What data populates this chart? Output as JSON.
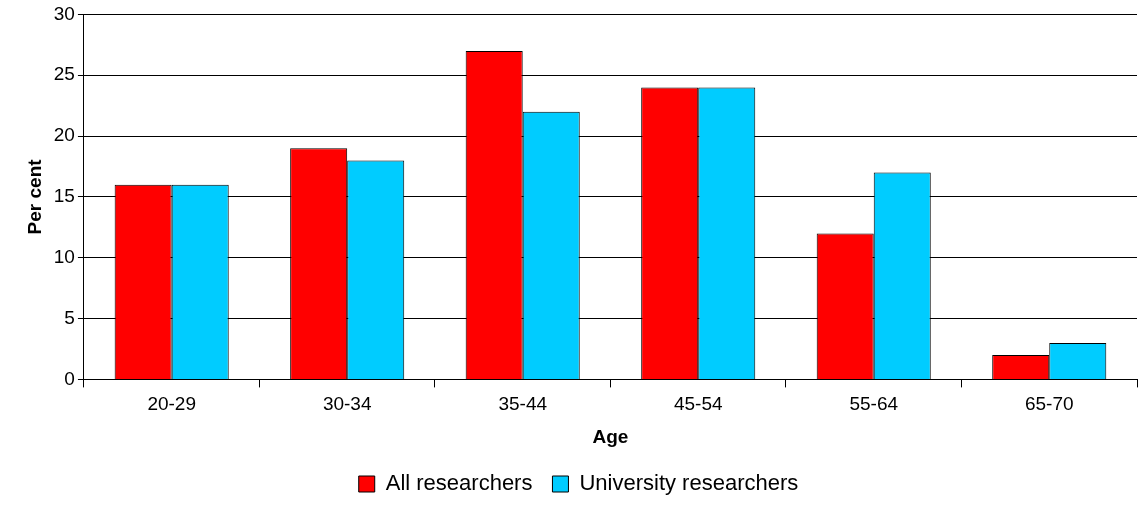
{
  "chart_data": {
    "type": "bar",
    "xlabel": "Age",
    "ylabel": "Per cent",
    "categories": [
      "20-29",
      "30-34",
      "35-44",
      "45-54",
      "55-64",
      "65-70"
    ],
    "series": [
      {
        "name": "All researchers",
        "color": "#ff0000",
        "values": [
          16,
          19,
          27,
          24,
          12,
          2
        ]
      },
      {
        "name": "University researchers",
        "color": "#00ccff",
        "values": [
          16,
          18,
          22,
          24,
          17,
          3
        ]
      }
    ],
    "ylim": [
      0,
      30
    ],
    "yticks": [
      0,
      5,
      10,
      15,
      20,
      25,
      30
    ],
    "grid": "y",
    "legend": "bottom"
  }
}
